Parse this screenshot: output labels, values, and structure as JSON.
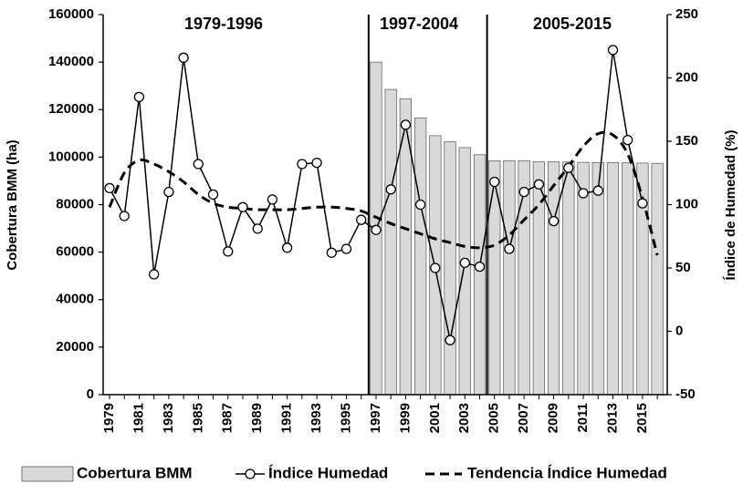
{
  "chart_data": {
    "type": "bar+line",
    "x": [
      1979,
      1980,
      1981,
      1982,
      1983,
      1984,
      1985,
      1986,
      1987,
      1988,
      1989,
      1990,
      1991,
      1992,
      1993,
      1994,
      1995,
      1996,
      1997,
      1998,
      1999,
      2000,
      2001,
      2002,
      2003,
      2004,
      2005,
      2006,
      2007,
      2008,
      2009,
      2010,
      2011,
      2012,
      2013,
      2014,
      2015,
      2016
    ],
    "x_tick_labels": [
      "1979",
      "1981",
      "1983",
      "1985",
      "1987",
      "1989",
      "1991",
      "1993",
      "1995",
      "1997",
      "1999",
      "2001",
      "2003",
      "2005",
      "2007",
      "2009",
      "2011",
      "2013",
      "2015"
    ],
    "series": [
      {
        "name": "Cobertura BMM",
        "kind": "bar",
        "axis": "left",
        "color": "#d9d9d9",
        "values": [
          null,
          null,
          null,
          null,
          null,
          null,
          null,
          null,
          null,
          null,
          null,
          null,
          null,
          null,
          null,
          null,
          null,
          null,
          140000,
          128500,
          124500,
          116500,
          109000,
          106500,
          104000,
          101000,
          98500,
          98500,
          98500,
          98000,
          98000,
          98000,
          97800,
          97700,
          97700,
          97600,
          97500,
          97400
        ]
      },
      {
        "name": "Índice Humedad",
        "kind": "line",
        "axis": "right",
        "color": "#000000",
        "values": [
          113,
          91,
          185,
          45,
          110,
          216,
          132,
          108,
          63,
          98,
          81,
          104,
          66,
          132,
          133,
          62,
          65,
          88,
          80,
          112,
          163,
          100,
          50,
          -7,
          54,
          51,
          118,
          65,
          110,
          116,
          87,
          129,
          109,
          111,
          222,
          151,
          101,
          null
        ]
      },
      {
        "name": "Tendencia Índice Humedad",
        "kind": "line-dashed",
        "axis": "right",
        "color": "#000000",
        "values": [
          98,
          125,
          135,
          132,
          126,
          118,
          108,
          101,
          98,
          97,
          96,
          96,
          96,
          97,
          98,
          98,
          97,
          95,
          90,
          85,
          81,
          77,
          73,
          70,
          67,
          66,
          68,
          76,
          88,
          100,
          115,
          130,
          146,
          156,
          155,
          140,
          105,
          60
        ]
      }
    ],
    "yleft": {
      "label": "Cobertura BMM (ha)",
      "lim": [
        0,
        160000
      ],
      "ticks": [
        "0",
        "20000",
        "40000",
        "60000",
        "80000",
        "100000",
        "120000",
        "140000",
        "160000"
      ]
    },
    "yright": {
      "label": "Índice de Humedad (%)",
      "lim": [
        -50,
        250
      ],
      "ticks": [
        "-50",
        "0",
        "50",
        "100",
        "150",
        "200",
        "250"
      ]
    },
    "periods": [
      {
        "label": "1979-1996"
      },
      {
        "label": "1997-2004"
      },
      {
        "label": "2005-2015"
      }
    ],
    "period_boundaries": [
      1996,
      2004
    ],
    "grid": false,
    "legend_position": "bottom"
  }
}
